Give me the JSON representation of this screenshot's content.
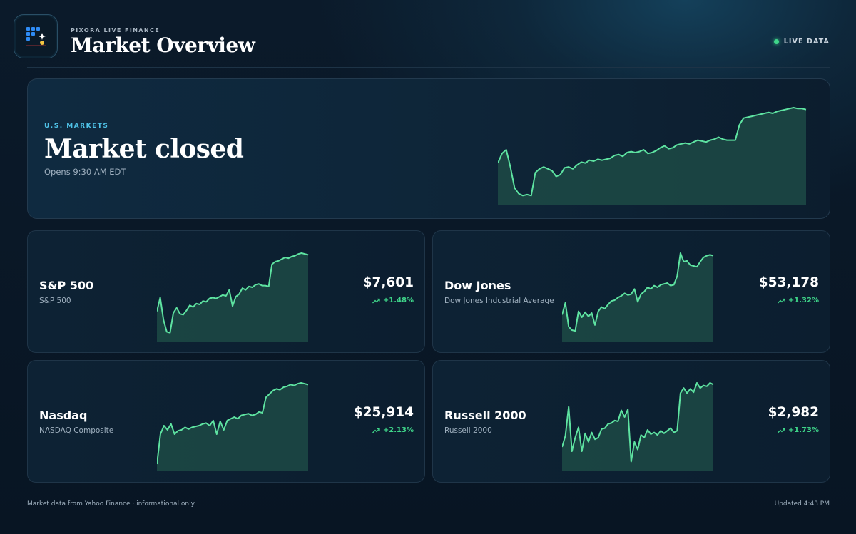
{
  "header": {
    "brand": "PIXORA LIVE FINANCE",
    "title": "Market Overview",
    "live_label": "LIVE DATA"
  },
  "hero": {
    "kicker": "U.S. MARKETS",
    "status": "Market closed",
    "subtitle": "Opens 9:30 AM EDT",
    "series": [
      0.42,
      0.52,
      0.56,
      0.38,
      0.16,
      0.1,
      0.08,
      0.09,
      0.08,
      0.32,
      0.36,
      0.38,
      0.36,
      0.34,
      0.28,
      0.3,
      0.37,
      0.38,
      0.36,
      0.4,
      0.43,
      0.42,
      0.45,
      0.44,
      0.46,
      0.45,
      0.46,
      0.47,
      0.5,
      0.51,
      0.49,
      0.53,
      0.54,
      0.53,
      0.54,
      0.56,
      0.52,
      0.53,
      0.55,
      0.58,
      0.6,
      0.57,
      0.58,
      0.61,
      0.62,
      0.63,
      0.62,
      0.64,
      0.66,
      0.65,
      0.64,
      0.66,
      0.67,
      0.69,
      0.67,
      0.66,
      0.66,
      0.66,
      0.82,
      0.89,
      0.9,
      0.91,
      0.92,
      0.93,
      0.94,
      0.95,
      0.94,
      0.96,
      0.97,
      0.98,
      0.99,
      1.0,
      0.99,
      0.99,
      0.98
    ]
  },
  "indices": [
    {
      "name": "S&P 500",
      "full_name": "S&P 500",
      "price": "$7,601",
      "change": "+1.48%",
      "series": [
        0.32,
        0.48,
        0.22,
        0.08,
        0.07,
        0.3,
        0.36,
        0.29,
        0.28,
        0.33,
        0.39,
        0.37,
        0.41,
        0.4,
        0.44,
        0.43,
        0.47,
        0.48,
        0.47,
        0.49,
        0.51,
        0.5,
        0.57,
        0.38,
        0.49,
        0.52,
        0.59,
        0.57,
        0.61,
        0.6,
        0.63,
        0.64,
        0.62,
        0.62,
        0.61,
        0.87,
        0.9,
        0.91,
        0.93,
        0.95,
        0.94,
        0.96,
        0.97,
        0.99,
        1.0,
        0.99,
        0.98
      ]
    },
    {
      "name": "Dow Jones",
      "full_name": "Dow Jones Industrial Average",
      "price": "$53,178",
      "change": "+1.32%",
      "series": [
        0.28,
        0.42,
        0.14,
        0.1,
        0.09,
        0.32,
        0.25,
        0.31,
        0.26,
        0.3,
        0.16,
        0.32,
        0.37,
        0.35,
        0.4,
        0.44,
        0.45,
        0.48,
        0.5,
        0.53,
        0.51,
        0.52,
        0.58,
        0.43,
        0.52,
        0.55,
        0.6,
        0.58,
        0.62,
        0.6,
        0.63,
        0.64,
        0.65,
        0.62,
        0.63,
        0.73,
        1.0,
        0.9,
        0.91,
        0.86,
        0.85,
        0.84,
        0.9,
        0.95,
        0.97,
        0.98,
        0.97
      ]
    },
    {
      "name": "Nasdaq",
      "full_name": "NASDAQ Composite",
      "price": "$25,914",
      "change": "+2.13%",
      "series": [
        0.05,
        0.4,
        0.5,
        0.45,
        0.52,
        0.4,
        0.44,
        0.45,
        0.48,
        0.46,
        0.48,
        0.49,
        0.5,
        0.52,
        0.53,
        0.5,
        0.56,
        0.4,
        0.55,
        0.45,
        0.56,
        0.58,
        0.6,
        0.58,
        0.62,
        0.63,
        0.64,
        0.62,
        0.63,
        0.66,
        0.65,
        0.83,
        0.87,
        0.91,
        0.93,
        0.92,
        0.95,
        0.96,
        0.98,
        0.97,
        0.99,
        1.0,
        0.99,
        0.98
      ]
    },
    {
      "name": "Russell 2000",
      "full_name": "Russell 2000",
      "price": "$2,982",
      "change": "+1.73%",
      "series": [
        0.25,
        0.38,
        0.72,
        0.2,
        0.36,
        0.48,
        0.2,
        0.41,
        0.31,
        0.42,
        0.34,
        0.36,
        0.46,
        0.47,
        0.52,
        0.53,
        0.56,
        0.55,
        0.68,
        0.6,
        0.69,
        0.08,
        0.31,
        0.22,
        0.39,
        0.36,
        0.45,
        0.4,
        0.42,
        0.39,
        0.44,
        0.41,
        0.44,
        0.47,
        0.42,
        0.44,
        0.88,
        0.94,
        0.88,
        0.93,
        0.89,
        1.0,
        0.94,
        0.97,
        0.96,
        1.0,
        0.98
      ]
    }
  ],
  "footer": {
    "source": "Market data from Yahoo Finance · informational only",
    "updated": "Updated 4:43 PM"
  },
  "colors": {
    "accent_line": "#5ee3a1",
    "accent_fill": "#1d4a45",
    "positive": "#3fd68a",
    "kicker": "#4fc3e8"
  }
}
